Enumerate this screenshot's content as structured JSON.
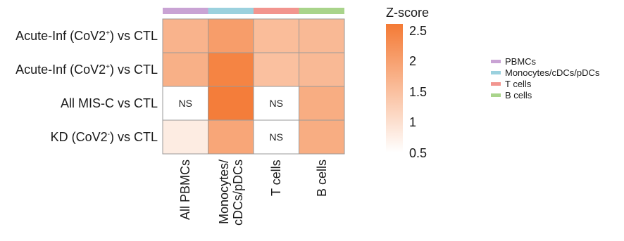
{
  "chart_data": {
    "type": "heatmap",
    "rows": [
      {
        "text": "Acute-Inf (CoV2",
        "sup": "+",
        "tail": ") vs CTL"
      },
      {
        "text": "Acute-Inf (CoV2",
        "sup": "+",
        "tail": ") vs CTL"
      },
      {
        "text": "All MIS-C vs CTL",
        "sup": "",
        "tail": ""
      },
      {
        "text": "KD (CoV2",
        "sup": "-",
        "tail": ") vs CTL"
      }
    ],
    "columns": [
      {
        "line1": "All PBMCs",
        "line2": ""
      },
      {
        "line1": "Monocytes/",
        "line2": "cDCs/pDCs"
      },
      {
        "line1": "T cells",
        "line2": ""
      },
      {
        "line1": "B cells",
        "line2": ""
      }
    ],
    "column_groups": [
      {
        "name": "PBMCs",
        "color": "#c9a3d4"
      },
      {
        "name": "Monocytes/cDCs/pDCs",
        "color": "#9bd1de"
      },
      {
        "name": "T cells",
        "color": "#f2958f"
      },
      {
        "name": "B cells",
        "color": "#a9d48b"
      }
    ],
    "values": [
      [
        1.7,
        2.05,
        1.55,
        1.6
      ],
      [
        1.75,
        2.45,
        1.5,
        1.6
      ],
      [
        null,
        2.55,
        null,
        1.8
      ],
      [
        0.8,
        1.9,
        null,
        1.8
      ]
    ],
    "na_label": "NS",
    "colorbar": {
      "title": "Z-score",
      "range": [
        0.5,
        2.6
      ],
      "ticks": [
        "2.5",
        "2",
        "1.5",
        "1",
        "0.5"
      ],
      "tick_values": [
        2.5,
        2,
        1.5,
        1,
        0.5
      ],
      "low_color": "#ffffff",
      "high_color": "#f47a35"
    }
  }
}
